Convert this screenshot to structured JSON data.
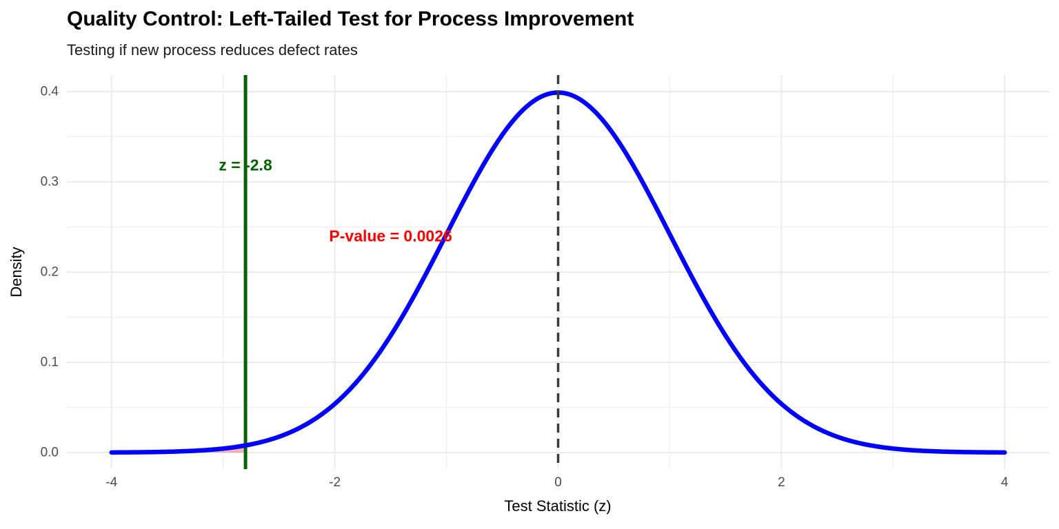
{
  "chart": {
    "title": "Quality Control: Left-Tailed Test for Process Improvement",
    "subtitle": "Testing if new process reduces defect rates",
    "xlabel": "Test Statistic (z)",
    "ylabel": "Density"
  },
  "chart_data": {
    "type": "line",
    "title": "Quality Control: Left-Tailed Test for Process Improvement",
    "subtitle": "Testing if new process reduces defect rates",
    "xlabel": "Test Statistic (z)",
    "ylabel": "Density",
    "x_ticks": [
      -4,
      -2,
      0,
      2,
      4
    ],
    "y_ticks": [
      0.0,
      0.1,
      0.2,
      0.3,
      0.4
    ],
    "y_tick_labels": [
      "0.0",
      "0.1",
      "0.2",
      "0.3",
      "0.4"
    ],
    "x_tick_labels": [
      "-4",
      "-2",
      "0",
      "2",
      "4"
    ],
    "xlim": [
      -4.4,
      4.4
    ],
    "ylim": [
      -0.0183,
      0.4183
    ],
    "grid": true,
    "legend": "none",
    "distribution": {
      "name": "standard-normal",
      "mean": 0,
      "sd": 1,
      "z_range": [
        -4,
        4
      ]
    },
    "curve_points": {
      "z": [
        -4,
        -3.5,
        -3,
        -2.5,
        -2,
        -1.5,
        -1,
        -0.5,
        0,
        0.5,
        1,
        1.5,
        2,
        2.5,
        3,
        3.5,
        4
      ],
      "density": [
        0.0001,
        0.0009,
        0.0044,
        0.0175,
        0.054,
        0.1295,
        0.242,
        0.3521,
        0.3989,
        0.3521,
        0.242,
        0.1295,
        0.054,
        0.0175,
        0.0044,
        0.0009,
        0.0001
      ]
    },
    "test": {
      "tail": "left",
      "z_statistic": -2.8,
      "p_value": 0.0026,
      "shaded_region_z": [
        -4,
        -2.8
      ]
    },
    "reference_lines": [
      {
        "name": "z-statistic-line",
        "x": -2.8,
        "style": "solid",
        "color": "#006400",
        "width": 5
      },
      {
        "name": "null-mean-line",
        "x": 0,
        "style": "dashed",
        "color": "#3a3a3a",
        "width": 3.5
      }
    ],
    "annotations": [
      {
        "name": "z-statistic-label",
        "text": "z = -2.8",
        "x": -2.8,
        "y": 0.318,
        "color": "#006400"
      },
      {
        "name": "p-value-label",
        "text": "P-value = 0.0026",
        "x": -1.5,
        "y": 0.2397,
        "color": "#ff0000"
      }
    ],
    "colors": {
      "curve": "#0000ff",
      "shaded_tail_fill": "rgba(255,0,0,0.3)",
      "major_grid": "#ebebeb",
      "minor_grid": "#f0f0f0",
      "tick_text": "#4d4d4d",
      "background": "#ffffff"
    }
  }
}
